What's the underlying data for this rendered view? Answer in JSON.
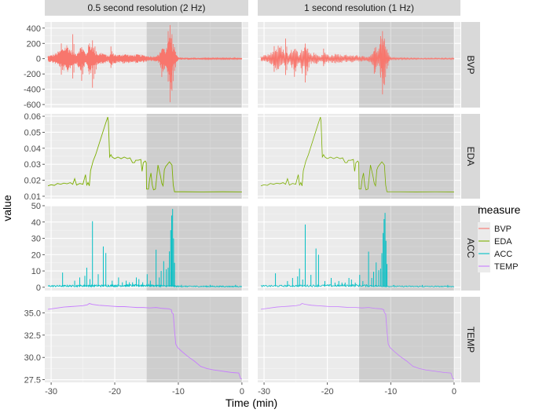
{
  "chart_data": {
    "type": "line",
    "facet_columns": [
      "0.5 second resolution (2 Hz)",
      "1 second resolution (1 Hz)"
    ],
    "facet_rows": [
      "BVP",
      "EDA",
      "ACC",
      "TEMP"
    ],
    "xlabel": "Time (min)",
    "ylabel": "value",
    "xlim": [
      -31,
      1
    ],
    "x_ticks": [
      -30,
      -20,
      -10,
      0
    ],
    "x_tick_labels": [
      "-30",
      "-20",
      "-10",
      "0"
    ],
    "shaded_interval": [
      -15,
      0
    ],
    "legend": {
      "title": "measure",
      "position": "right",
      "entries": [
        {
          "name": "BVP",
          "color": "#F8766D"
        },
        {
          "name": "EDA",
          "color": "#7CAE00"
        },
        {
          "name": "ACC",
          "color": "#00BFC4"
        },
        {
          "name": "TEMP",
          "color": "#C77CFF"
        }
      ]
    },
    "panels": {
      "BVP": {
        "ylim": [
          -640,
          480
        ],
        "y_ticks": [
          400,
          200,
          0,
          -200,
          -400,
          -600
        ],
        "y_tick_labels": [
          "400",
          "200",
          "0",
          "-200",
          "-400",
          "-600"
        ],
        "series_kind": "oscillation",
        "envelope": [
          [
            -30.5,
            40
          ],
          [
            -29.5,
            60
          ],
          [
            -28.5,
            120
          ],
          [
            -27.5,
            200
          ],
          [
            -27,
            130
          ],
          [
            -26.5,
            90
          ],
          [
            -26,
            70
          ],
          [
            -25.5,
            160
          ],
          [
            -25,
            150
          ],
          [
            -24.5,
            60
          ],
          [
            -24,
            230
          ],
          [
            -23.5,
            180
          ],
          [
            -23,
            90
          ],
          [
            -22.5,
            70
          ],
          [
            -22,
            90
          ],
          [
            -21.5,
            60
          ],
          [
            -21,
            40
          ],
          [
            -20.5,
            80
          ],
          [
            -19.5,
            50
          ],
          [
            -18.5,
            70
          ],
          [
            -17.5,
            50
          ],
          [
            -16.5,
            60
          ],
          [
            -15.5,
            50
          ],
          [
            -15,
            40
          ],
          [
            -14,
            30
          ],
          [
            -13,
            60
          ],
          [
            -12.5,
            190
          ],
          [
            -12,
            120
          ],
          [
            -11.5,
            250
          ],
          [
            -11.2,
            370
          ],
          [
            -10.9,
            180
          ],
          [
            -10.5,
            90
          ],
          [
            -10,
            15
          ],
          [
            -5,
            8
          ],
          [
            0,
            10
          ]
        ],
        "peaks": [
          [
            -28.4,
            200,
            -210
          ],
          [
            -26.6,
            320,
            -260
          ],
          [
            -25.2,
            150,
            -290
          ],
          [
            -23.5,
            240,
            -380
          ],
          [
            -23.1,
            160,
            -200
          ],
          [
            -20.6,
            160,
            -120
          ],
          [
            -12.6,
            120,
            -240
          ],
          [
            -11.6,
            360,
            -300
          ],
          [
            -11.3,
            440,
            -570
          ],
          [
            -11.0,
            320,
            -420
          ],
          [
            -10.6,
            150,
            -160
          ]
        ]
      },
      "EDA": {
        "ylim": [
          0.0085,
          0.0615
        ],
        "y_ticks": [
          0.06,
          0.05,
          0.04,
          0.03,
          0.02,
          0.01
        ],
        "y_tick_labels": [
          "0.06",
          "0.05",
          "0.04",
          "0.03",
          "0.02",
          "0.01"
        ],
        "series_kind": "line",
        "points": [
          [
            -30.5,
            0.0165
          ],
          [
            -30,
            0.0172
          ],
          [
            -29.5,
            0.0168
          ],
          [
            -29,
            0.018
          ],
          [
            -28.5,
            0.0175
          ],
          [
            -28,
            0.0182
          ],
          [
            -27.5,
            0.0178
          ],
          [
            -27,
            0.0185
          ],
          [
            -26.6,
            0.0175
          ],
          [
            -26.3,
            0.021
          ],
          [
            -26,
            0.017
          ],
          [
            -25.5,
            0.018
          ],
          [
            -25,
            0.0175
          ],
          [
            -24.6,
            0.0235
          ],
          [
            -24.4,
            0.017
          ],
          [
            -24.2,
            0.0185
          ],
          [
            -24,
            0.0165
          ],
          [
            -23.8,
            0.026
          ],
          [
            -23.4,
            0.032
          ],
          [
            -23,
            0.036
          ],
          [
            -22.6,
            0.041
          ],
          [
            -22.2,
            0.046
          ],
          [
            -21.8,
            0.051
          ],
          [
            -21.4,
            0.056
          ],
          [
            -21.1,
            0.0595
          ],
          [
            -21.0,
            0.0565
          ],
          [
            -20.8,
            0.0345
          ],
          [
            -20.6,
            0.036
          ],
          [
            -20.4,
            0.0345
          ],
          [
            -20,
            0.0335
          ],
          [
            -19.5,
            0.0345
          ],
          [
            -19,
            0.0335
          ],
          [
            -18.5,
            0.0345
          ],
          [
            -18,
            0.0335
          ],
          [
            -17.6,
            0.034
          ],
          [
            -17.2,
            0.031
          ],
          [
            -16.9,
            0.031
          ],
          [
            -16.7,
            0.0325
          ],
          [
            -16.3,
            0.0325
          ],
          [
            -15.9,
            0.033
          ],
          [
            -15.7,
            0.0255
          ],
          [
            -15.5,
            0.031
          ],
          [
            -15.2,
            0.032
          ],
          [
            -15.05,
            0.031
          ],
          [
            -15.0,
            0.0145
          ],
          [
            -14.7,
            0.0145
          ],
          [
            -14.5,
            0.021
          ],
          [
            -14.3,
            0.0245
          ],
          [
            -14.1,
            0.017
          ],
          [
            -13.9,
            0.014
          ],
          [
            -13.6,
            0.0145
          ],
          [
            -13.2,
            0.0295
          ],
          [
            -13.0,
            0.026
          ],
          [
            -12.8,
            0.0225
          ],
          [
            -12.6,
            0.018
          ],
          [
            -12.4,
            0.0165
          ],
          [
            -12.2,
            0.0265
          ],
          [
            -12.0,
            0.0285
          ],
          [
            -11.8,
            0.0295
          ],
          [
            -11.6,
            0.0305
          ],
          [
            -11.4,
            0.0315
          ],
          [
            -11.2,
            0.0305
          ],
          [
            -11.0,
            0.0295
          ],
          [
            -10.8,
            0.017
          ],
          [
            -10.6,
            0.0128
          ],
          [
            -9,
            0.0128
          ],
          [
            -6,
            0.0127
          ],
          [
            -3,
            0.0128
          ],
          [
            0,
            0.0127
          ]
        ]
      },
      "ACC": {
        "ylim": [
          -2,
          50
        ],
        "y_ticks": [
          50,
          40,
          30,
          20,
          10,
          0
        ],
        "y_tick_labels": [
          "50",
          "40",
          "30",
          "20",
          "10",
          "0"
        ],
        "series_kind": "spikes",
        "baseline": [
          [
            -30.5,
            0.8
          ],
          [
            -15,
            1.2
          ],
          [
            -10,
            0.6
          ],
          [
            0,
            0.5
          ]
        ],
        "spikes": [
          [
            -28.2,
            9
          ],
          [
            -26.3,
            4
          ],
          [
            -25.5,
            6
          ],
          [
            -24.7,
            7
          ],
          [
            -24.4,
            12
          ],
          [
            -23.9,
            5
          ],
          [
            -23.5,
            40.5
          ],
          [
            -22.6,
            8
          ],
          [
            -21.8,
            25
          ],
          [
            -21.4,
            21
          ],
          [
            -20.4,
            4
          ],
          [
            -19.4,
            6
          ],
          [
            -18.8,
            3
          ],
          [
            -18.2,
            4
          ],
          [
            -17.7,
            3
          ],
          [
            -17.2,
            3
          ],
          [
            -16.6,
            6
          ],
          [
            -16.2,
            5
          ],
          [
            -15.6,
            3
          ],
          [
            -14.9,
            8
          ],
          [
            -14.4,
            4
          ],
          [
            -13.5,
            23
          ],
          [
            -13.0,
            6
          ],
          [
            -12.7,
            10
          ],
          [
            -12.3,
            16
          ],
          [
            -11.9,
            11
          ],
          [
            -11.6,
            12
          ],
          [
            -11.4,
            22
          ],
          [
            -11.2,
            35
          ],
          [
            -11.05,
            44
          ],
          [
            -10.9,
            48
          ],
          [
            -10.75,
            30
          ],
          [
            -10.6,
            15
          ],
          [
            -9.5,
            1.5
          ],
          [
            -7.5,
            1
          ],
          [
            -5,
            1.5
          ],
          [
            -3,
            1
          ],
          [
            -1,
            1.5
          ]
        ]
      },
      "TEMP": {
        "ylim": [
          27.2,
          36.8
        ],
        "y_ticks": [
          35.0,
          32.5,
          30.0,
          27.5
        ],
        "y_tick_labels": [
          "35.0",
          "32.5",
          "30.0",
          "27.5"
        ],
        "series_kind": "line",
        "points": [
          [
            -30.5,
            35.4
          ],
          [
            -29.5,
            35.5
          ],
          [
            -28,
            35.65
          ],
          [
            -27,
            35.7
          ],
          [
            -26,
            35.75
          ],
          [
            -25,
            35.8
          ],
          [
            -24.3,
            35.9
          ],
          [
            -24,
            36.05
          ],
          [
            -23.5,
            35.95
          ],
          [
            -22.5,
            35.85
          ],
          [
            -21.5,
            35.8
          ],
          [
            -20.5,
            35.75
          ],
          [
            -19.5,
            35.7
          ],
          [
            -18.5,
            35.7
          ],
          [
            -17.5,
            35.65
          ],
          [
            -16.5,
            35.6
          ],
          [
            -15.5,
            35.6
          ],
          [
            -14.5,
            35.55
          ],
          [
            -13.5,
            35.6
          ],
          [
            -12.5,
            35.5
          ],
          [
            -11.5,
            35.45
          ],
          [
            -11.1,
            35.35
          ],
          [
            -11.0,
            35.0
          ],
          [
            -10.8,
            34.9
          ],
          [
            -10.6,
            33.0
          ],
          [
            -10.4,
            31.5
          ],
          [
            -10.1,
            31.1
          ],
          [
            -9.5,
            30.7
          ],
          [
            -8.5,
            30.1
          ],
          [
            -7.5,
            29.6
          ],
          [
            -6.5,
            29.0
          ],
          [
            -5.5,
            28.75
          ],
          [
            -4.5,
            28.6
          ],
          [
            -3.5,
            28.5
          ],
          [
            -2.5,
            28.4
          ],
          [
            -1.5,
            28.3
          ],
          [
            -0.5,
            28.25
          ],
          [
            -0.2,
            27.6
          ],
          [
            0,
            27.6
          ]
        ]
      }
    }
  }
}
